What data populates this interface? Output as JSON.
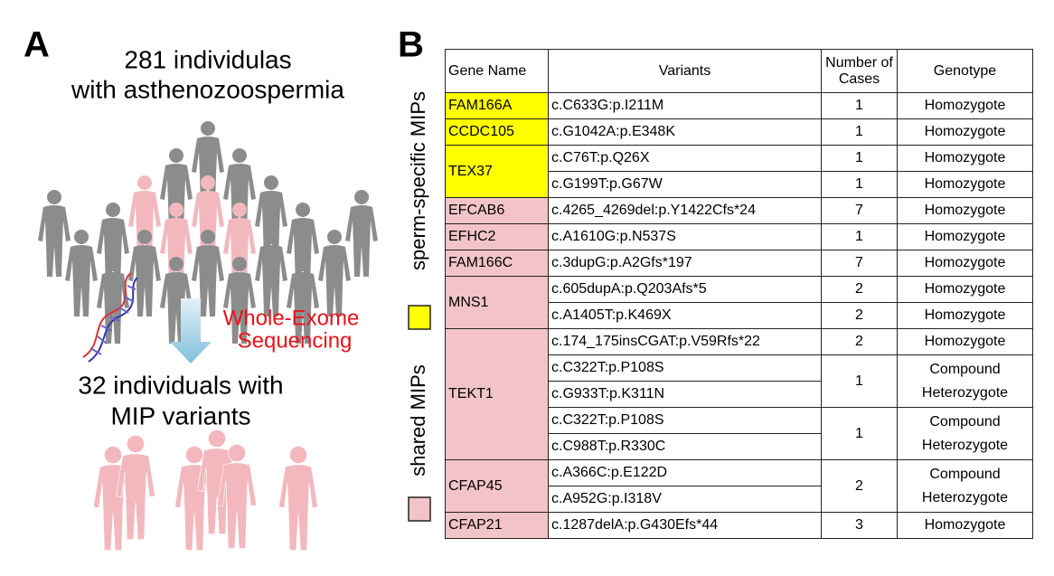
{
  "panel_a": {
    "label": "A",
    "cohort": [
      "281 individulas",
      "with asthenozoospermia"
    ],
    "method": [
      "Whole-Exome",
      "Sequencing"
    ],
    "result": [
      "32 individuals with",
      "MIP variants"
    ]
  },
  "panel_b": {
    "label": "B",
    "header": [
      "Gene Name",
      "Variants",
      "Number of Cases",
      "Genotype"
    ],
    "groups": [
      {
        "label": "sperm-specific MIPs",
        "color": "#ffff00",
        "genes": [
          {
            "name": "FAM166A",
            "calls": [
              {
                "variants": [
                  "c.C633G:p.I211M"
                ],
                "cases": 1,
                "genotype": "Homozygote"
              }
            ]
          },
          {
            "name": "CCDC105",
            "calls": [
              {
                "variants": [
                  "c.G1042A:p.E348K"
                ],
                "cases": 1,
                "genotype": "Homozygote"
              }
            ]
          },
          {
            "name": "TEX37",
            "calls": [
              {
                "variants": [
                  "c.C76T:p.Q26X"
                ],
                "cases": 1,
                "genotype": "Homozygote"
              },
              {
                "variants": [
                  "c.G199T:p.G67W"
                ],
                "cases": 1,
                "genotype": "Homozygote"
              }
            ]
          }
        ]
      },
      {
        "label": "shared MIPs",
        "color": "#f2c4c8",
        "genes": [
          {
            "name": "EFCAB6",
            "calls": [
              {
                "variants": [
                  "c.4265_4269del:p.Y1422Cfs*24"
                ],
                "cases": 7,
                "genotype": "Homozygote"
              }
            ]
          },
          {
            "name": "EFHC2",
            "calls": [
              {
                "variants": [
                  "c.A1610G:p.N537S"
                ],
                "cases": 1,
                "genotype": "Homozygote"
              }
            ]
          },
          {
            "name": "FAM166C",
            "calls": [
              {
                "variants": [
                  "c.3dupG:p.A2Gfs*197"
                ],
                "cases": 7,
                "genotype": "Homozygote"
              }
            ]
          },
          {
            "name": "MNS1",
            "calls": [
              {
                "variants": [
                  "c.605dupA:p.Q203Afs*5"
                ],
                "cases": 2,
                "genotype": "Homozygote"
              },
              {
                "variants": [
                  "c.A1405T:p.K469X"
                ],
                "cases": 2,
                "genotype": "Homozygote"
              }
            ]
          },
          {
            "name": "TEKT1",
            "calls": [
              {
                "variants": [
                  "c.174_175insCGAT:p.V59Rfs*22"
                ],
                "cases": 2,
                "genotype": "Homozygote"
              },
              {
                "variants": [
                  "c.C322T:p.P108S",
                  "c.G933T:p.K311N"
                ],
                "cases": 1,
                "genotype": "Compound Heterozygote"
              },
              {
                "variants": [
                  "c.C322T:p.P108S",
                  "c.C988T:p.R330C"
                ],
                "cases": 1,
                "genotype": "Compound Heterozygote"
              }
            ]
          },
          {
            "name": "CFAP45",
            "calls": [
              {
                "variants": [
                  "c.A366C:p.E122D",
                  "c.A952G:p.I318V"
                ],
                "cases": 2,
                "genotype": "Compound Heterozygote"
              }
            ]
          },
          {
            "name": "CFAP21",
            "calls": [
              {
                "variants": [
                  "c.1287delA:p.G430Efs*44"
                ],
                "cases": 3,
                "genotype": "Homozygote"
              }
            ]
          }
        ]
      }
    ]
  }
}
